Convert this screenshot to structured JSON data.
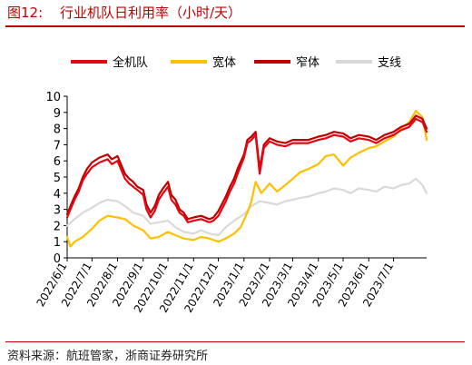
{
  "header": {
    "figure_label": "图12:",
    "title": "行业机队日利用率（小时/天）"
  },
  "source": "资料来源：航班管家，浙商证券研究所",
  "chart_data": {
    "type": "line",
    "ylim": [
      0,
      10
    ],
    "yticks": [
      0,
      1,
      2,
      3,
      4,
      5,
      6,
      7,
      8,
      9,
      10
    ],
    "x_tick_labels": [
      "2022/6/1",
      "2022/7/1",
      "2022/8/1",
      "2022/9/1",
      "2022/10/1",
      "2022/11/1",
      "2022/12/1",
      "2023/1/1",
      "2023/2/1",
      "2023/3/1",
      "2023/4/1",
      "2023/5/1",
      "2023/6/1",
      "2023/7/1"
    ],
    "x_range": [
      "2022/6/1",
      "2023/8/10"
    ],
    "legend_position": "top",
    "series": [
      {
        "name": "全机队",
        "color": "#e30613",
        "points": [
          [
            "2022/6/1",
            2.5
          ],
          [
            "2022/6/5",
            3.0
          ],
          [
            "2022/6/10",
            3.6
          ],
          [
            "2022/6/15",
            4.1
          ],
          [
            "2022/6/20",
            4.8
          ],
          [
            "2022/6/25",
            5.2
          ],
          [
            "2022/7/1",
            5.6
          ],
          [
            "2022/7/10",
            5.9
          ],
          [
            "2022/7/20",
            6.1
          ],
          [
            "2022/7/25",
            5.8
          ],
          [
            "2022/8/1",
            6.0
          ],
          [
            "2022/8/5",
            5.5
          ],
          [
            "2022/8/10",
            4.9
          ],
          [
            "2022/8/15",
            4.6
          ],
          [
            "2022/8/20",
            4.4
          ],
          [
            "2022/8/25",
            4.2
          ],
          [
            "2022/9/1",
            3.9
          ],
          [
            "2022/9/5",
            3.0
          ],
          [
            "2022/9/10",
            2.5
          ],
          [
            "2022/9/15",
            2.9
          ],
          [
            "2022/9/20",
            3.6
          ],
          [
            "2022/9/25",
            4.0
          ],
          [
            "2022/10/1",
            4.4
          ],
          [
            "2022/10/5",
            3.6
          ],
          [
            "2022/10/10",
            3.3
          ],
          [
            "2022/10/15",
            2.8
          ],
          [
            "2022/10/20",
            2.6
          ],
          [
            "2022/10/25",
            2.2
          ],
          [
            "2022/11/1",
            2.3
          ],
          [
            "2022/11/10",
            2.4
          ],
          [
            "2022/11/20",
            2.2
          ],
          [
            "2022/11/25",
            2.3
          ],
          [
            "2022/12/1",
            2.6
          ],
          [
            "2022/12/10",
            3.5
          ],
          [
            "2022/12/15",
            4.1
          ],
          [
            "2022/12/20",
            4.6
          ],
          [
            "2022/12/25",
            5.3
          ],
          [
            "2023/1/1",
            6.2
          ],
          [
            "2023/1/5",
            7.1
          ],
          [
            "2023/1/10",
            7.3
          ],
          [
            "2023/1/15",
            7.6
          ],
          [
            "2023/1/20",
            5.2
          ],
          [
            "2023/1/25",
            6.8
          ],
          [
            "2023/2/1",
            7.2
          ],
          [
            "2023/2/10",
            7.0
          ],
          [
            "2023/2/20",
            6.9
          ],
          [
            "2023/3/1",
            7.1
          ],
          [
            "2023/3/10",
            7.1
          ],
          [
            "2023/3/20",
            7.1
          ],
          [
            "2023/4/1",
            7.3
          ],
          [
            "2023/4/10",
            7.4
          ],
          [
            "2023/4/20",
            7.6
          ],
          [
            "2023/5/1",
            7.5
          ],
          [
            "2023/5/10",
            7.2
          ],
          [
            "2023/5/20",
            7.4
          ],
          [
            "2023/6/1",
            7.3
          ],
          [
            "2023/6/10",
            7.1
          ],
          [
            "2023/6/20",
            7.4
          ],
          [
            "2023/7/1",
            7.6
          ],
          [
            "2023/7/10",
            7.9
          ],
          [
            "2023/7/20",
            8.1
          ],
          [
            "2023/7/28",
            8.6
          ],
          [
            "2023/8/5",
            8.4
          ],
          [
            "2023/8/10",
            7.8
          ]
        ]
      },
      {
        "name": "宽体",
        "color": "#ffc000",
        "points": [
          [
            "2022/6/1",
            1.3
          ],
          [
            "2022/6/5",
            0.7
          ],
          [
            "2022/6/10",
            1.0
          ],
          [
            "2022/6/20",
            1.3
          ],
          [
            "2022/7/1",
            1.8
          ],
          [
            "2022/7/10",
            2.3
          ],
          [
            "2022/7/20",
            2.6
          ],
          [
            "2022/8/1",
            2.5
          ],
          [
            "2022/8/10",
            2.4
          ],
          [
            "2022/8/20",
            2.0
          ],
          [
            "2022/9/1",
            1.7
          ],
          [
            "2022/9/10",
            1.2
          ],
          [
            "2022/9/20",
            1.3
          ],
          [
            "2022/10/1",
            1.6
          ],
          [
            "2022/10/10",
            1.4
          ],
          [
            "2022/10/20",
            1.2
          ],
          [
            "2022/11/1",
            1.1
          ],
          [
            "2022/11/10",
            1.3
          ],
          [
            "2022/11/20",
            1.2
          ],
          [
            "2022/12/1",
            1.0
          ],
          [
            "2022/12/10",
            1.2
          ],
          [
            "2022/12/20",
            1.5
          ],
          [
            "2022/12/28",
            1.9
          ],
          [
            "2023/1/5",
            2.8
          ],
          [
            "2023/1/10",
            3.5
          ],
          [
            "2023/1/15",
            4.7
          ],
          [
            "2023/1/22",
            4.0
          ],
          [
            "2023/2/1",
            4.6
          ],
          [
            "2023/2/10",
            4.1
          ],
          [
            "2023/2/20",
            4.5
          ],
          [
            "2023/3/1",
            4.9
          ],
          [
            "2023/3/10",
            5.3
          ],
          [
            "2023/3/20",
            5.5
          ],
          [
            "2023/4/1",
            5.8
          ],
          [
            "2023/4/10",
            6.3
          ],
          [
            "2023/4/20",
            6.4
          ],
          [
            "2023/5/1",
            5.7
          ],
          [
            "2023/5/10",
            6.2
          ],
          [
            "2023/5/20",
            6.5
          ],
          [
            "2023/6/1",
            6.8
          ],
          [
            "2023/6/10",
            6.9
          ],
          [
            "2023/6/20",
            7.2
          ],
          [
            "2023/7/1",
            7.5
          ],
          [
            "2023/7/10",
            8.0
          ],
          [
            "2023/7/20",
            8.4
          ],
          [
            "2023/7/28",
            9.1
          ],
          [
            "2023/8/5",
            8.7
          ],
          [
            "2023/8/10",
            7.3
          ]
        ]
      },
      {
        "name": "窄体",
        "color": "#c00000",
        "points": [
          [
            "2022/6/1",
            2.7
          ],
          [
            "2022/6/5",
            3.2
          ],
          [
            "2022/6/10",
            3.8
          ],
          [
            "2022/6/15",
            4.3
          ],
          [
            "2022/6/20",
            5.0
          ],
          [
            "2022/6/25",
            5.5
          ],
          [
            "2022/7/1",
            5.9
          ],
          [
            "2022/7/10",
            6.2
          ],
          [
            "2022/7/20",
            6.4
          ],
          [
            "2022/7/25",
            6.1
          ],
          [
            "2022/8/1",
            6.3
          ],
          [
            "2022/8/5",
            5.8
          ],
          [
            "2022/8/10",
            5.2
          ],
          [
            "2022/8/15",
            4.9
          ],
          [
            "2022/8/20",
            4.7
          ],
          [
            "2022/8/25",
            4.4
          ],
          [
            "2022/9/1",
            4.2
          ],
          [
            "2022/9/5",
            3.3
          ],
          [
            "2022/9/10",
            2.8
          ],
          [
            "2022/9/15",
            3.2
          ],
          [
            "2022/9/20",
            3.9
          ],
          [
            "2022/9/25",
            4.3
          ],
          [
            "2022/10/1",
            4.7
          ],
          [
            "2022/10/5",
            3.9
          ],
          [
            "2022/10/10",
            3.6
          ],
          [
            "2022/10/15",
            3.0
          ],
          [
            "2022/10/20",
            2.8
          ],
          [
            "2022/10/25",
            2.4
          ],
          [
            "2022/11/1",
            2.5
          ],
          [
            "2022/11/10",
            2.6
          ],
          [
            "2022/11/20",
            2.4
          ],
          [
            "2022/11/25",
            2.5
          ],
          [
            "2022/12/1",
            2.9
          ],
          [
            "2022/12/10",
            3.8
          ],
          [
            "2022/12/15",
            4.4
          ],
          [
            "2022/12/20",
            4.9
          ],
          [
            "2022/12/25",
            5.6
          ],
          [
            "2023/1/1",
            6.4
          ],
          [
            "2023/1/5",
            7.3
          ],
          [
            "2023/1/10",
            7.5
          ],
          [
            "2023/1/15",
            7.8
          ],
          [
            "2023/1/20",
            5.5
          ],
          [
            "2023/1/25",
            7.0
          ],
          [
            "2023/2/1",
            7.4
          ],
          [
            "2023/2/10",
            7.2
          ],
          [
            "2023/2/20",
            7.1
          ],
          [
            "2023/3/1",
            7.3
          ],
          [
            "2023/3/10",
            7.3
          ],
          [
            "2023/3/20",
            7.3
          ],
          [
            "2023/4/1",
            7.5
          ],
          [
            "2023/4/10",
            7.6
          ],
          [
            "2023/4/20",
            7.8
          ],
          [
            "2023/5/1",
            7.7
          ],
          [
            "2023/5/10",
            7.4
          ],
          [
            "2023/5/20",
            7.6
          ],
          [
            "2023/6/1",
            7.5
          ],
          [
            "2023/6/10",
            7.3
          ],
          [
            "2023/6/20",
            7.6
          ],
          [
            "2023/7/1",
            7.8
          ],
          [
            "2023/7/10",
            8.1
          ],
          [
            "2023/7/20",
            8.3
          ],
          [
            "2023/7/28",
            8.8
          ],
          [
            "2023/8/5",
            8.6
          ],
          [
            "2023/8/10",
            8.0
          ]
        ]
      },
      {
        "name": "支线",
        "color": "#d9d9d9",
        "points": [
          [
            "2022/6/1",
            2.0
          ],
          [
            "2022/6/10",
            2.4
          ],
          [
            "2022/6/20",
            2.8
          ],
          [
            "2022/7/1",
            3.1
          ],
          [
            "2022/7/10",
            3.4
          ],
          [
            "2022/7/20",
            3.6
          ],
          [
            "2022/8/1",
            3.5
          ],
          [
            "2022/8/10",
            3.2
          ],
          [
            "2022/8/20",
            2.8
          ],
          [
            "2022/9/1",
            2.6
          ],
          [
            "2022/9/10",
            2.1
          ],
          [
            "2022/9/20",
            2.2
          ],
          [
            "2022/10/1",
            2.3
          ],
          [
            "2022/10/10",
            1.9
          ],
          [
            "2022/10/20",
            1.6
          ],
          [
            "2022/11/1",
            1.5
          ],
          [
            "2022/11/10",
            1.7
          ],
          [
            "2022/11/20",
            1.5
          ],
          [
            "2022/12/1",
            1.4
          ],
          [
            "2022/12/10",
            1.9
          ],
          [
            "2022/12/20",
            2.3
          ],
          [
            "2023/1/1",
            2.7
          ],
          [
            "2023/1/10",
            3.2
          ],
          [
            "2023/1/20",
            3.5
          ],
          [
            "2023/2/1",
            3.4
          ],
          [
            "2023/2/10",
            3.3
          ],
          [
            "2023/2/20",
            3.5
          ],
          [
            "2023/3/1",
            3.6
          ],
          [
            "2023/3/10",
            3.7
          ],
          [
            "2023/3/20",
            3.8
          ],
          [
            "2023/4/1",
            4.0
          ],
          [
            "2023/4/10",
            4.1
          ],
          [
            "2023/4/20",
            4.3
          ],
          [
            "2023/5/1",
            4.2
          ],
          [
            "2023/5/10",
            4.0
          ],
          [
            "2023/5/20",
            4.3
          ],
          [
            "2023/6/1",
            4.2
          ],
          [
            "2023/6/10",
            4.1
          ],
          [
            "2023/6/20",
            4.4
          ],
          [
            "2023/7/1",
            4.3
          ],
          [
            "2023/7/10",
            4.5
          ],
          [
            "2023/7/20",
            4.6
          ],
          [
            "2023/7/28",
            4.9
          ],
          [
            "2023/8/5",
            4.5
          ],
          [
            "2023/8/10",
            4.0
          ]
        ]
      }
    ]
  }
}
